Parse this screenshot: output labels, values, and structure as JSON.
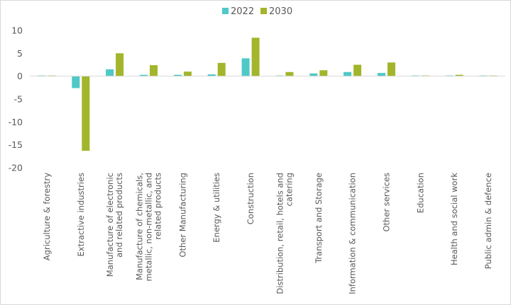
{
  "chart_data": {
    "type": "bar",
    "categories": [
      "Agriculture & forestry",
      "Extractive industries",
      "Manufacture of electronic and related products",
      "Manufacture of chemicals, metallic, non-metallic, and related products",
      "Other Manufacturing",
      "Energy & utilities",
      "Construction",
      "Distribution, retail, hotels and catering",
      "Transport and Storage",
      "Information & communication",
      "Other services",
      "Education",
      "Health and social work",
      "Public admin & defence"
    ],
    "category_lines": [
      [
        "Agriculture & forestry"
      ],
      [
        "Extractive industries"
      ],
      [
        "Manufacture of electronic",
        "and related products"
      ],
      [
        "Manufacture of chemicals,",
        "metallic, non-metallic, and",
        "related products"
      ],
      [
        "Other Manufacturing"
      ],
      [
        "Energy & utilities"
      ],
      [
        "Construction"
      ],
      [
        "Distribution, retail, hotels and",
        "catering"
      ],
      [
        "Transport and Storage"
      ],
      [
        "Information & communication"
      ],
      [
        "Other services"
      ],
      [
        "Education"
      ],
      [
        "Health and social work"
      ],
      [
        "Public admin & defence"
      ]
    ],
    "series": [
      {
        "name": "2022",
        "color": "#4fc8c8",
        "values": [
          0,
          -2.6,
          1.5,
          0.3,
          0.3,
          0.4,
          3.9,
          0,
          0.6,
          0.9,
          0.7,
          0,
          0,
          0.1
        ]
      },
      {
        "name": "2030",
        "color": "#a3b52a",
        "values": [
          0,
          -16.3,
          5.0,
          2.4,
          1.0,
          2.9,
          8.4,
          0.9,
          1.3,
          2.5,
          3.0,
          0.1,
          0.3,
          0.1
        ]
      }
    ],
    "ylim": [
      -20,
      10
    ],
    "yticks": [
      10,
      5,
      0,
      -5,
      -10,
      -15,
      -20
    ],
    "legend_position": "top-center",
    "grid": false
  }
}
